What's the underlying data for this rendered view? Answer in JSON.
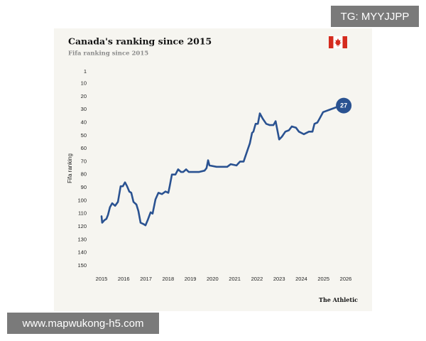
{
  "watermark_top": "TG: MYYJJPP",
  "watermark_bottom": "www.mapwukong-h5.com",
  "chart_data": {
    "type": "line",
    "title": "Canada's ranking since 2015",
    "subtitle": "Fifa ranking since 2015",
    "y_label": "Fifa ranking",
    "source": "The Athletic",
    "color": "#2a5291",
    "y_inverted": true,
    "x": [
      2015.0,
      2015.03,
      2015.13,
      2015.22,
      2015.29,
      2015.38,
      2015.48,
      2015.61,
      2015.74,
      2015.86,
      2015.96,
      2016.06,
      2016.15,
      2016.25,
      2016.34,
      2016.44,
      2016.57,
      2016.66,
      2016.76,
      2016.89,
      2016.98,
      2017.08,
      2017.21,
      2017.3,
      2017.43,
      2017.56,
      2017.72,
      2017.88,
      2018.01,
      2018.07,
      2018.17,
      2018.33,
      2018.45,
      2018.58,
      2018.68,
      2018.81,
      2018.93,
      2019.06,
      2019.38,
      2019.64,
      2019.73,
      2019.8,
      2019.86,
      2020.18,
      2020.66,
      2020.82,
      2021.08,
      2021.24,
      2021.4,
      2021.56,
      2021.68,
      2021.78,
      2021.84,
      2021.94,
      2022.04,
      2022.13,
      2022.26,
      2022.42,
      2022.58,
      2022.74,
      2022.84,
      2023.0,
      2023.12,
      2023.28,
      2023.44,
      2023.57,
      2023.76,
      2023.89,
      2024.11,
      2024.34,
      2024.5,
      2024.59,
      2024.72,
      2024.82,
      2024.98,
      2025.3,
      2025.78
    ],
    "values": [
      112,
      117,
      115,
      114,
      111,
      105,
      102,
      104,
      101,
      89,
      89,
      86,
      89,
      93,
      94,
      101,
      103,
      108,
      117,
      118,
      119,
      115,
      109,
      110,
      99,
      94,
      95,
      93,
      94,
      89,
      80,
      80,
      76,
      78,
      78,
      76,
      78,
      78,
      78,
      77,
      75,
      69,
      73,
      74,
      74,
      72,
      73,
      70,
      70,
      62,
      56,
      48,
      47,
      41,
      41,
      33,
      37,
      41,
      42,
      42,
      39,
      53,
      51,
      47,
      46,
      43,
      44,
      47,
      49,
      47,
      47,
      41,
      40,
      37,
      32,
      30,
      27
    ],
    "xlim": [
      2015,
      2026
    ],
    "xticks": [
      2015,
      2016,
      2017,
      2018,
      2019,
      2020,
      2021,
      2022,
      2023,
      2024,
      2025,
      2026
    ],
    "ylim": [
      1,
      150
    ],
    "yticks": [
      1,
      10,
      20,
      30,
      40,
      50,
      60,
      70,
      80,
      90,
      100,
      110,
      120,
      130,
      140,
      150
    ]
  }
}
